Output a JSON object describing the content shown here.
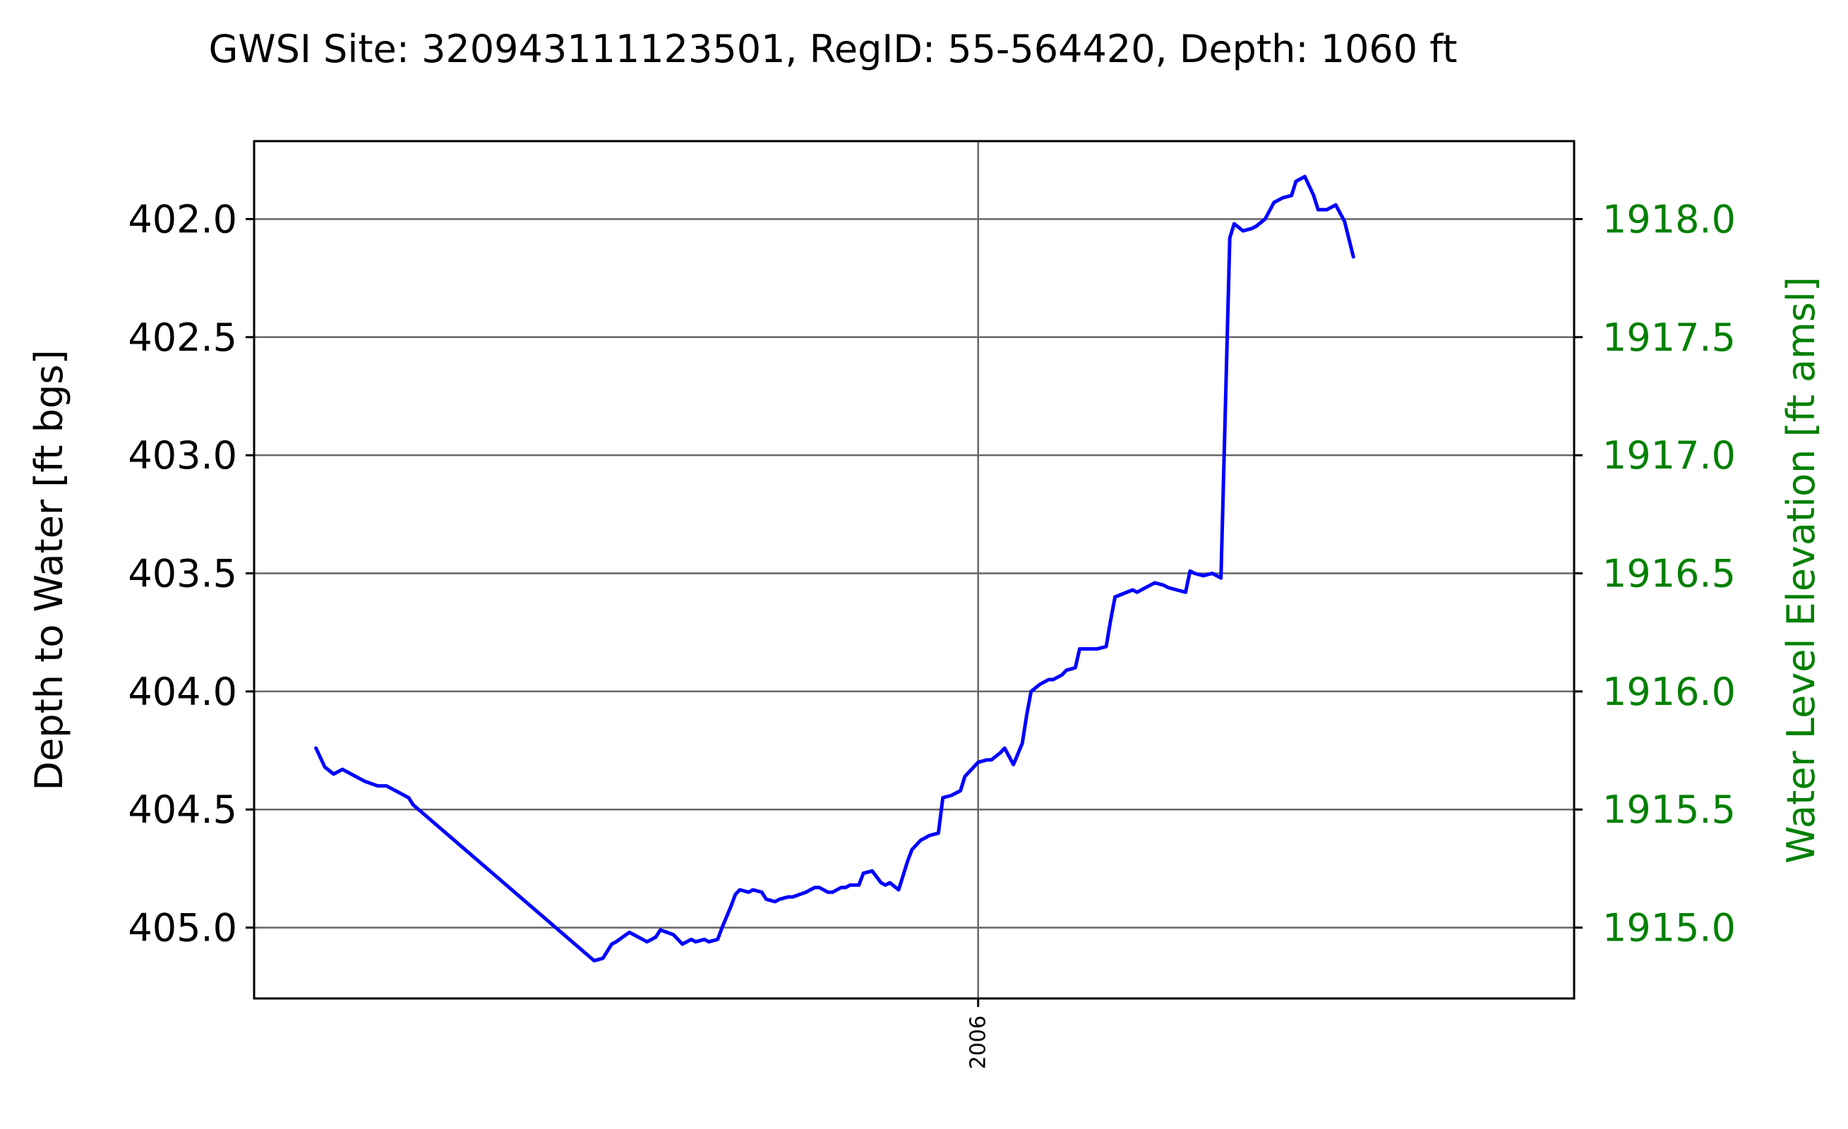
{
  "chart_data": {
    "type": "line",
    "title": "GWSI Site: 320943111123501, RegID: 55-564420, Depth: 1060 ft",
    "ylabel": "Depth to Water [ft bgs]",
    "ylabel_right": "Water Level Elevation [ft amsl]",
    "ylim": [
      405.3,
      401.67
    ],
    "ylim_right": [
      1914.7,
      1918.33
    ],
    "yticks": [
      402.0,
      402.5,
      403.0,
      403.5,
      404.0,
      404.5,
      405.0
    ],
    "ytick_labels": [
      "402.0",
      "402.5",
      "403.0",
      "403.5",
      "404.0",
      "404.5",
      "405.0"
    ],
    "yticks_right": [
      1918.0,
      1917.5,
      1917.0,
      1916.5,
      1916.0,
      1915.5,
      1915.0
    ],
    "ytick_labels_right": [
      "1918.0",
      "1917.5",
      "1917.0",
      "1916.5",
      "1916.0",
      "1915.5",
      "1915.0"
    ],
    "xlim": [
      2004.36,
      2007.35
    ],
    "xticks": [
      2006.0
    ],
    "xtick_labels": [
      "2006"
    ],
    "grid": true,
    "colors": {
      "line": "#0000ff",
      "right_axis": "#008000",
      "grid": "#666666"
    },
    "series": [
      {
        "x": [
          2004.5,
          2004.52,
          2004.54,
          2004.56,
          2004.61,
          2004.64,
          2004.66,
          2004.69,
          2004.71,
          2004.72,
          2005.13,
          2005.15,
          2005.17,
          2005.18,
          2005.21,
          2005.22,
          2005.24,
          2005.25,
          2005.27,
          2005.28,
          2005.31,
          2005.33,
          2005.35,
          2005.36,
          2005.38,
          2005.39,
          2005.41,
          2005.42,
          2005.44,
          2005.45,
          2005.46,
          2005.48,
          2005.49,
          2005.51,
          2005.52,
          2005.54,
          2005.55,
          2005.57,
          2005.58,
          2005.61,
          2005.63,
          2005.64,
          2005.66,
          2005.67,
          2005.69,
          2005.7,
          2005.71,
          2005.73,
          2005.74,
          2005.76,
          2005.78,
          2005.79,
          2005.8,
          2005.82,
          2005.84,
          2005.85,
          2005.87,
          2005.88,
          2005.89,
          2005.91,
          2005.92,
          2005.94,
          2005.96,
          2005.97,
          2006.0,
          2006.02,
          2006.03,
          2006.05,
          2006.06,
          2006.08,
          2006.1,
          2006.11,
          2006.12,
          2006.14,
          2006.16,
          2006.17,
          2006.19,
          2006.2,
          2006.22,
          2006.23,
          2006.24,
          2006.26,
          2006.27,
          2006.29,
          2006.3,
          2006.31,
          2006.35,
          2006.36,
          2006.38,
          2006.4,
          2006.42,
          2006.43,
          2006.45,
          2006.47,
          2006.48,
          2006.49,
          2006.51,
          2006.53,
          2006.55,
          2006.57,
          2006.58,
          2006.6,
          2006.62,
          2006.63,
          2006.65,
          2006.67,
          2006.69,
          2006.71,
          2006.72,
          2006.74,
          2006.76,
          2006.77,
          2006.79,
          2006.81,
          2006.83,
          2006.85
        ],
        "y": [
          404.24,
          404.32,
          404.35,
          404.33,
          404.38,
          404.4,
          404.4,
          404.43,
          404.45,
          404.48,
          405.14,
          405.13,
          405.07,
          405.06,
          405.02,
          405.03,
          405.05,
          405.06,
          405.04,
          405.01,
          405.03,
          405.07,
          405.05,
          405.06,
          405.05,
          405.06,
          405.05,
          405.0,
          404.91,
          404.86,
          404.84,
          404.85,
          404.84,
          404.85,
          404.88,
          404.89,
          404.88,
          404.87,
          404.87,
          404.85,
          404.83,
          404.83,
          404.85,
          404.85,
          404.83,
          404.83,
          404.82,
          404.82,
          404.77,
          404.76,
          404.81,
          404.82,
          404.81,
          404.84,
          404.72,
          404.67,
          404.63,
          404.62,
          404.61,
          404.6,
          404.45,
          404.44,
          404.42,
          404.36,
          404.3,
          404.29,
          404.29,
          404.26,
          404.24,
          404.31,
          404.22,
          404.1,
          404.0,
          403.97,
          403.95,
          403.95,
          403.93,
          403.91,
          403.9,
          403.82,
          403.82,
          403.82,
          403.82,
          403.81,
          403.7,
          403.6,
          403.57,
          403.58,
          403.56,
          403.54,
          403.55,
          403.56,
          403.57,
          403.58,
          403.49,
          403.5,
          403.51,
          403.5,
          403.52,
          402.08,
          402.02,
          402.05,
          402.04,
          402.03,
          402.0,
          401.93,
          401.91,
          401.9,
          401.84,
          401.82,
          401.9,
          401.96,
          401.96,
          401.94,
          402.01,
          402.16
        ]
      }
    ]
  }
}
